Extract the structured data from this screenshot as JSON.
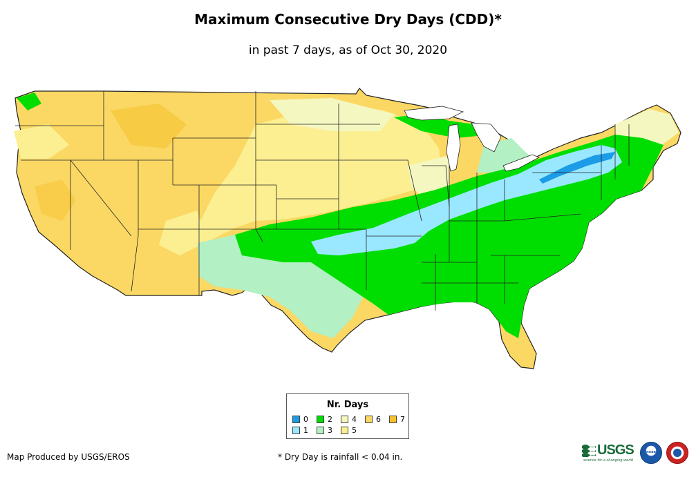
{
  "title": "Maximum Consecutive Dry Days (CDD)*",
  "subtitle": "in past 7 days, as of Oct 30, 2020",
  "legend": {
    "title": "Nr. Days",
    "items": [
      {
        "label": "0",
        "color": "#1c9be6"
      },
      {
        "label": "1",
        "color": "#9ae8ff"
      },
      {
        "label": "2",
        "color": "#00dd00"
      },
      {
        "label": "3",
        "color": "#b3f0c3"
      },
      {
        "label": "4",
        "color": "#f4f7c0"
      },
      {
        "label": "5",
        "color": "#fbef91"
      },
      {
        "label": "6",
        "color": "#fbd864"
      },
      {
        "label": "7",
        "color": "#f6c12a"
      }
    ]
  },
  "footer": {
    "producer": "Map Produced by USGS/EROS",
    "note": "* Dry Day is rainfall < 0.04 in."
  },
  "logos": {
    "usgs": "USGS",
    "usgs_tagline": "science for a changing world",
    "noaa": "noaa"
  }
}
